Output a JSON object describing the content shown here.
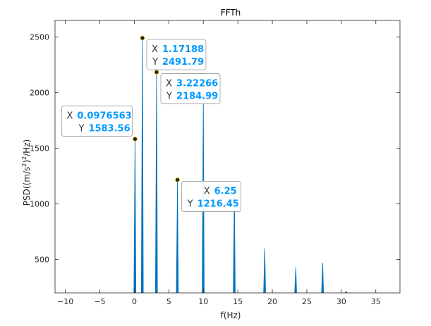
{
  "chart_data": {
    "type": "line",
    "title": "FFTh",
    "xlabel": "f(Hz)",
    "ylabel_parts": [
      "PSD((m/s",
      "2",
      ")",
      "2",
      "/Hz)"
    ],
    "xlim": [
      -11.5,
      38.5
    ],
    "ylim": [
      200,
      2650
    ],
    "xticks": [
      -10,
      -5,
      0,
      5,
      10,
      15,
      20,
      25,
      30,
      35
    ],
    "xtick_labels": [
      "−10",
      "−5",
      "0",
      "5",
      "10",
      "15",
      "20",
      "25",
      "30",
      "35"
    ],
    "yticks": [
      500,
      1000,
      1500,
      2000,
      2500
    ],
    "ytick_labels": [
      "500",
      "1000",
      "1500",
      "2000",
      "2500"
    ],
    "grid": false,
    "series": [
      {
        "color": "#0072bd",
        "peaks": [
          {
            "x": 0.0976563,
            "y": 1583.56
          },
          {
            "x": 1.17188,
            "y": 2491.79
          },
          {
            "x": 3.22266,
            "y": 2184.99
          },
          {
            "x": 6.25,
            "y": 1216.45
          },
          {
            "x": 10.0,
            "y": 1980
          },
          {
            "x": 14.5,
            "y": 1110
          },
          {
            "x": 18.9,
            "y": 600
          },
          {
            "x": 23.4,
            "y": 430
          },
          {
            "x": 27.3,
            "y": 470
          },
          {
            "x": 30.7,
            "y": 215
          }
        ]
      }
    ],
    "datatips": [
      {
        "x_key": "X",
        "y_key": "Y",
        "x_value": "0.0976563",
        "y_value": "1583.56",
        "x": 0.0976563,
        "y": 1583.56,
        "side": "left"
      },
      {
        "x_key": "X",
        "y_key": "Y",
        "x_value": "1.17188",
        "y_value": "2491.79",
        "x": 1.17188,
        "y": 2491.79,
        "side": "right"
      },
      {
        "x_key": "X",
        "y_key": "Y",
        "x_value": "3.22266",
        "y_value": "2184.99",
        "x": 3.22266,
        "y": 2184.99,
        "side": "right"
      },
      {
        "x_key": "X",
        "y_key": "Y",
        "x_value": "6.25",
        "y_value": "1216.45",
        "x": 6.25,
        "y": 1216.45,
        "side": "right"
      }
    ],
    "value_color": "#0099ff"
  }
}
